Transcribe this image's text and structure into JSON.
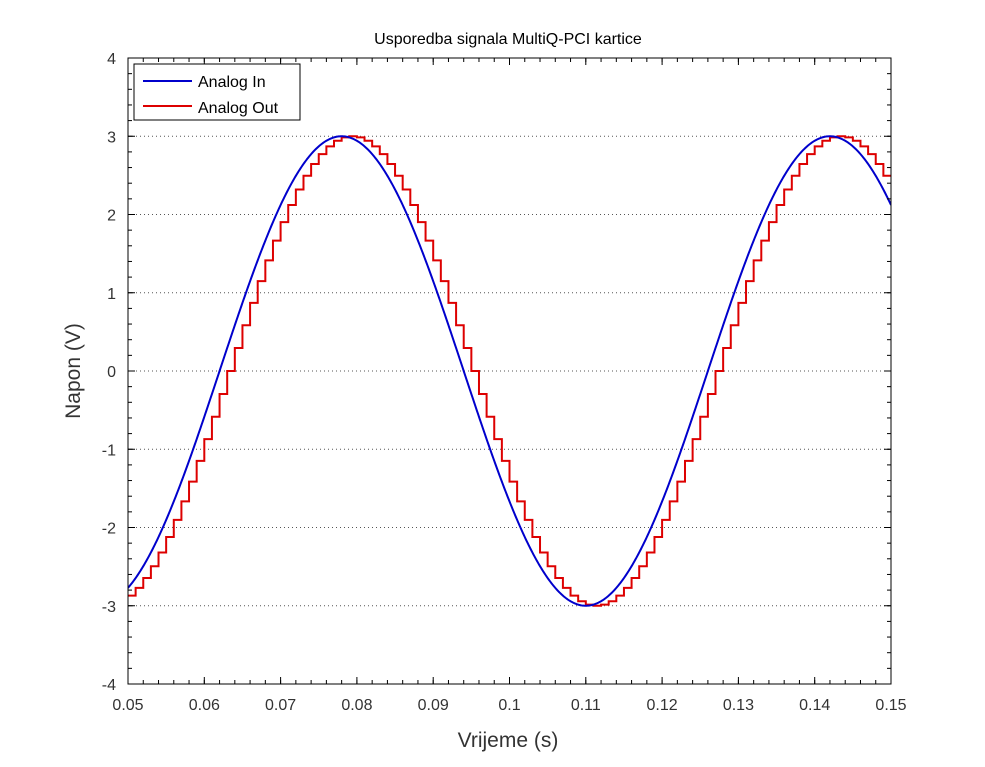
{
  "chart_data": {
    "type": "line",
    "title": "Usporedba signala MultiQ-PCI kartice",
    "xlabel": "Vrijeme (s)",
    "ylabel": "Napon (V)",
    "xlim": [
      0.05,
      0.15
    ],
    "ylim": [
      -4,
      4
    ],
    "x_ticks": [
      "0.05",
      "0.06",
      "0.07",
      "0.08",
      "0.09",
      "0.1",
      "0.11",
      "0.12",
      "0.13",
      "0.14",
      "0.15"
    ],
    "y_ticks": [
      "-4",
      "-3",
      "-2",
      "-1",
      "0",
      "1",
      "2",
      "3",
      "4"
    ],
    "grid": "y-dotted",
    "legend_position": "top-left",
    "series": [
      {
        "name": "Analog In",
        "color": "#0000cc",
        "style": "smooth",
        "amplitude": 3,
        "frequency_hz": 15.625,
        "peak_times": [
          0.078,
          0.142
        ],
        "trough_time": 0.11,
        "x": [
          0.05,
          0.055,
          0.06,
          0.065,
          0.07,
          0.075,
          0.078,
          0.08,
          0.085,
          0.09,
          0.095,
          0.1,
          0.105,
          0.11,
          0.115,
          0.12,
          0.125,
          0.13,
          0.135,
          0.14,
          0.142,
          0.145,
          0.15
        ],
        "y": [
          -2.83,
          -2.07,
          -0.88,
          0.49,
          1.77,
          2.72,
          3.0,
          2.96,
          2.27,
          1.17,
          -0.2,
          -1.53,
          -2.57,
          -3.0,
          -2.69,
          -1.85,
          -0.59,
          0.78,
          2.01,
          2.85,
          3.0,
          2.77,
          1.73
        ]
      },
      {
        "name": "Analog Out",
        "color": "#dd0000",
        "style": "staircase",
        "step_s": 0.001,
        "lag_s": 0.0015,
        "x": [
          0.05,
          0.055,
          0.06,
          0.065,
          0.07,
          0.075,
          0.079,
          0.08,
          0.085,
          0.09,
          0.095,
          0.1,
          0.105,
          0.111,
          0.115,
          0.12,
          0.125,
          0.13,
          0.135,
          0.14,
          0.1425,
          0.145,
          0.15
        ],
        "y": [
          -2.96,
          -2.56,
          -1.53,
          -0.2,
          1.17,
          2.27,
          3.0,
          3.0,
          2.72,
          1.77,
          0.49,
          -0.88,
          -2.07,
          -3.0,
          -2.96,
          -2.31,
          -1.29,
          0.1,
          1.43,
          2.51,
          3.0,
          2.96,
          2.0
        ]
      }
    ]
  }
}
